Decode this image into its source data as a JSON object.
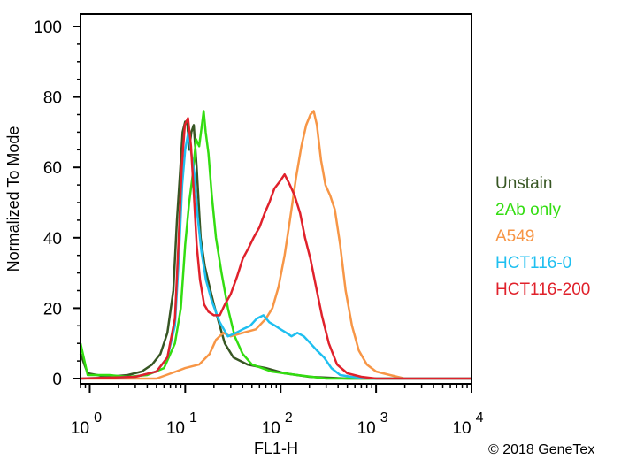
{
  "chart_data": {
    "type": "line",
    "title": "",
    "xlabel": "FL1-H",
    "ylabel": "Normalized To Mode",
    "x_scale": "log",
    "x_ticks": [
      {
        "base": "10",
        "exp": "0"
      },
      {
        "base": "10",
        "exp": "1"
      },
      {
        "base": "10",
        "exp": "2"
      },
      {
        "base": "10",
        "exp": "3"
      },
      {
        "base": "10",
        "exp": "4"
      }
    ],
    "xlim": [
      0.8,
      10000
    ],
    "ylim": [
      0,
      100
    ],
    "y_ticks": [
      "0",
      "20",
      "40",
      "60",
      "80",
      "100"
    ],
    "grid": false,
    "legend_position": "right",
    "series": [
      {
        "name": "Unstain",
        "color": "#375623",
        "points": [
          [
            0.8,
            7
          ],
          [
            0.95,
            1.5
          ],
          [
            1.5,
            0.5
          ],
          [
            2.5,
            1
          ],
          [
            3.5,
            2
          ],
          [
            4.5,
            4
          ],
          [
            5.5,
            7
          ],
          [
            6.5,
            13
          ],
          [
            7.5,
            25
          ],
          [
            8.2,
            45
          ],
          [
            8.8,
            58
          ],
          [
            9.4,
            70
          ],
          [
            10,
            73
          ],
          [
            10.5,
            73
          ],
          [
            11,
            65
          ],
          [
            11.6,
            70
          ],
          [
            12.3,
            72
          ],
          [
            13.2,
            60
          ],
          [
            14.5,
            40
          ],
          [
            16,
            32
          ],
          [
            18,
            26
          ],
          [
            20,
            21
          ],
          [
            23,
            15
          ],
          [
            26,
            10
          ],
          [
            32,
            6
          ],
          [
            45,
            4
          ],
          [
            70,
            3
          ],
          [
            110,
            1.5
          ],
          [
            200,
            0.5
          ],
          [
            500,
            0
          ],
          [
            10000,
            0
          ]
        ]
      },
      {
        "name": "2Ab only",
        "color": "#33DD11",
        "points": [
          [
            0.8,
            10
          ],
          [
            0.95,
            1
          ],
          [
            1.6,
            1
          ],
          [
            2.5,
            0.5
          ],
          [
            4,
            1
          ],
          [
            6,
            3
          ],
          [
            7.8,
            10
          ],
          [
            9,
            20
          ],
          [
            10,
            38
          ],
          [
            11,
            50
          ],
          [
            12,
            58
          ],
          [
            13,
            68
          ],
          [
            14,
            66
          ],
          [
            14.8,
            71
          ],
          [
            15.6,
            76
          ],
          [
            16.4,
            70
          ],
          [
            17.5,
            64
          ],
          [
            19,
            52
          ],
          [
            21,
            40
          ],
          [
            24,
            30
          ],
          [
            28,
            20
          ],
          [
            33,
            12
          ],
          [
            40,
            7
          ],
          [
            50,
            4
          ],
          [
            80,
            2
          ],
          [
            150,
            1
          ],
          [
            300,
            0
          ],
          [
            10000,
            0
          ]
        ]
      },
      {
        "name": "A549",
        "color": "#F79646",
        "points": [
          [
            0.8,
            0
          ],
          [
            5,
            0
          ],
          [
            8,
            2
          ],
          [
            10,
            3
          ],
          [
            14,
            4
          ],
          [
            18,
            7
          ],
          [
            21,
            11
          ],
          [
            25,
            13
          ],
          [
            30,
            12
          ],
          [
            40,
            13
          ],
          [
            55,
            14
          ],
          [
            70,
            17
          ],
          [
            82,
            20
          ],
          [
            95,
            26
          ],
          [
            110,
            35
          ],
          [
            125,
            45
          ],
          [
            145,
            57
          ],
          [
            165,
            66
          ],
          [
            185,
            72
          ],
          [
            205,
            75
          ],
          [
            222,
            76
          ],
          [
            240,
            72
          ],
          [
            265,
            62
          ],
          [
            295,
            55
          ],
          [
            330,
            52
          ],
          [
            370,
            48
          ],
          [
            420,
            38
          ],
          [
            480,
            25
          ],
          [
            560,
            15
          ],
          [
            660,
            8
          ],
          [
            800,
            4
          ],
          [
            1000,
            2
          ],
          [
            1400,
            1
          ],
          [
            2000,
            0
          ],
          [
            10000,
            0
          ]
        ]
      },
      {
        "name": "HCT116-0",
        "color": "#1EBFF0",
        "points": [
          [
            0.8,
            0
          ],
          [
            3,
            0.5
          ],
          [
            5,
            2
          ],
          [
            6.5,
            6
          ],
          [
            7.8,
            15
          ],
          [
            8.6,
            35
          ],
          [
            9.3,
            55
          ],
          [
            10,
            65
          ],
          [
            10.8,
            70
          ],
          [
            11.6,
            64
          ],
          [
            12.5,
            58
          ],
          [
            13.5,
            46
          ],
          [
            14.8,
            36
          ],
          [
            16.5,
            28
          ],
          [
            19,
            22
          ],
          [
            23,
            16
          ],
          [
            28,
            12
          ],
          [
            34,
            13
          ],
          [
            40,
            14
          ],
          [
            48,
            15
          ],
          [
            56,
            17
          ],
          [
            66,
            18
          ],
          [
            76,
            16
          ],
          [
            88,
            15
          ],
          [
            100,
            14
          ],
          [
            115,
            13
          ],
          [
            130,
            12
          ],
          [
            150,
            13
          ],
          [
            175,
            12
          ],
          [
            205,
            10
          ],
          [
            240,
            8
          ],
          [
            285,
            6
          ],
          [
            340,
            3
          ],
          [
            420,
            1
          ],
          [
            550,
            0.5
          ],
          [
            900,
            0
          ],
          [
            10000,
            0
          ]
        ]
      },
      {
        "name": "HCT116-200",
        "color": "#E0212B",
        "points": [
          [
            0.8,
            0
          ],
          [
            3,
            0.5
          ],
          [
            5,
            2
          ],
          [
            6.5,
            6
          ],
          [
            7.8,
            17
          ],
          [
            8.5,
            38
          ],
          [
            9.2,
            60
          ],
          [
            9.9,
            72
          ],
          [
            10.7,
            74
          ],
          [
            11.5,
            66
          ],
          [
            12.3,
            53
          ],
          [
            13.2,
            38
          ],
          [
            14.3,
            28
          ],
          [
            15.8,
            21
          ],
          [
            17.5,
            19
          ],
          [
            20,
            18
          ],
          [
            23,
            18
          ],
          [
            26,
            21
          ],
          [
            30,
            24
          ],
          [
            35,
            29
          ],
          [
            40,
            34
          ],
          [
            46,
            37
          ],
          [
            52,
            40
          ],
          [
            60,
            43
          ],
          [
            68,
            47
          ],
          [
            76,
            50
          ],
          [
            86,
            54
          ],
          [
            98,
            56
          ],
          [
            110,
            58
          ],
          [
            125,
            55
          ],
          [
            140,
            52
          ],
          [
            160,
            47
          ],
          [
            180,
            40
          ],
          [
            205,
            34
          ],
          [
            235,
            26
          ],
          [
            270,
            18
          ],
          [
            320,
            10
          ],
          [
            390,
            4
          ],
          [
            500,
            1.5
          ],
          [
            700,
            0.5
          ],
          [
            1000,
            0
          ],
          [
            10000,
            0
          ]
        ]
      }
    ]
  },
  "copyright": "© 2018 GeneTex"
}
